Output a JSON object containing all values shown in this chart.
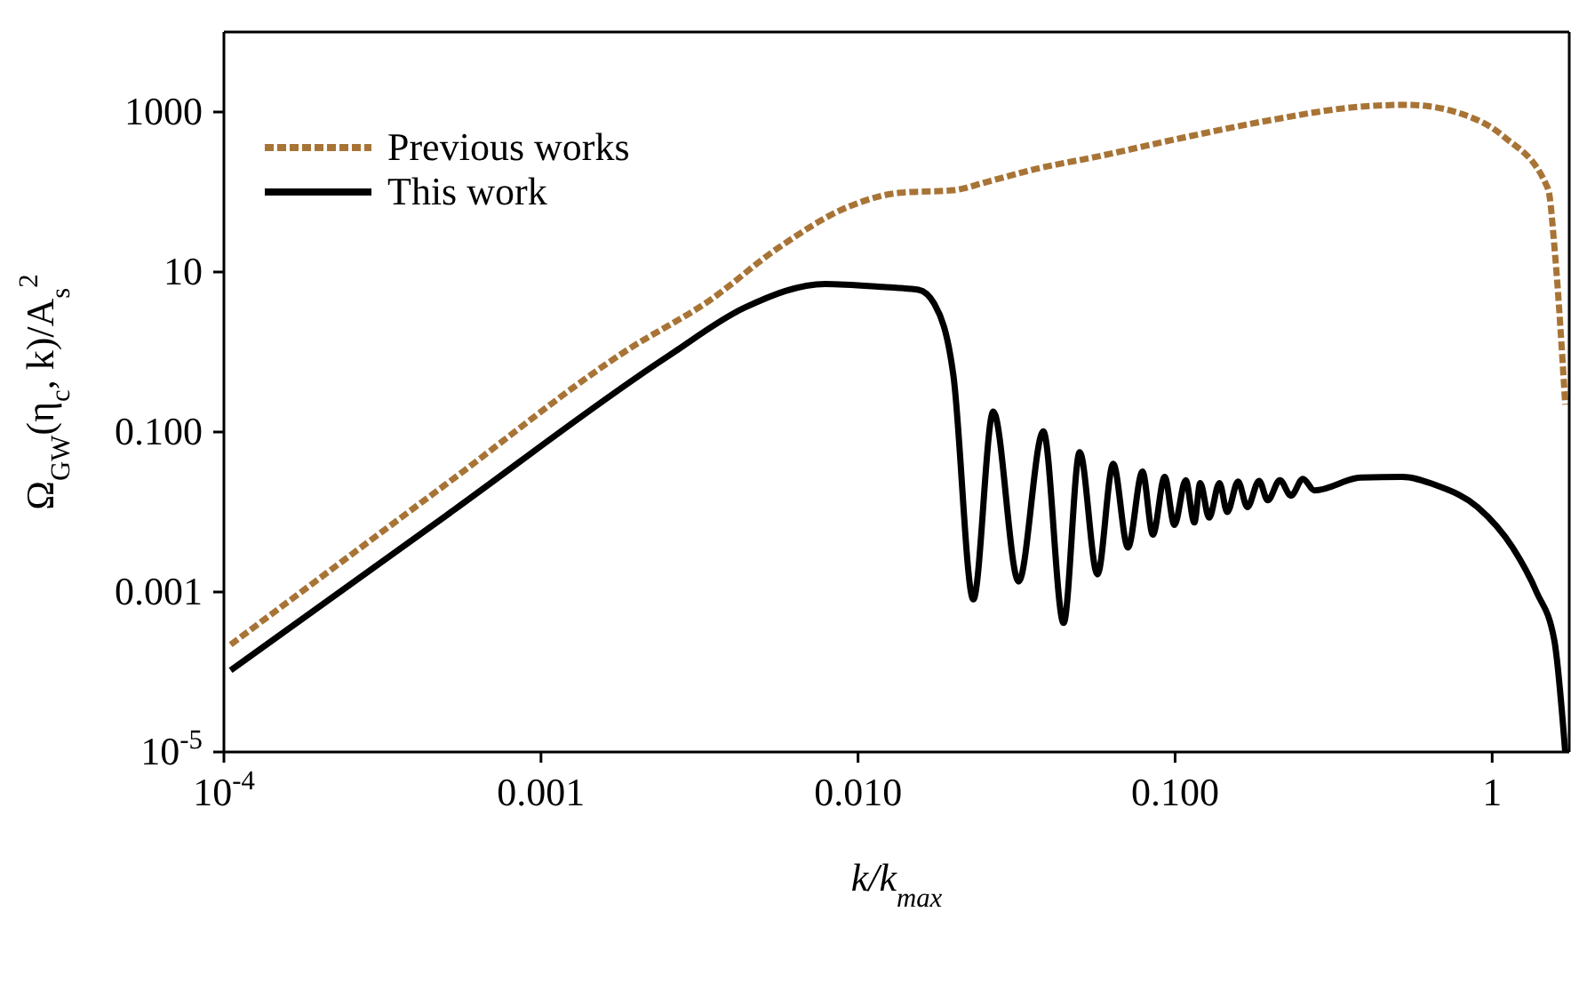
{
  "chart_data": {
    "type": "line",
    "xlabel": "k/k$_{max}$",
    "ylabel": "Ω$_{GW}$(η$_{c}$, k)/A$_{s}$$^{2}$",
    "log": "xy",
    "legend": "top left",
    "xlim": [
      0.0001,
      1.75
    ],
    "xticks": [
      {
        "value": 0.0001,
        "label": "10$^{-4}$"
      },
      {
        "value": 0.001,
        "label": "0.001"
      },
      {
        "value": 0.01,
        "label": "0.010"
      },
      {
        "value": 0.1,
        "label": "0.100"
      },
      1
    ],
    "ylim": [
      1e-05,
      10000
    ],
    "yticks": [
      {
        "value": 1e-05,
        "label": "10$^{-5}$"
      },
      0.001,
      {
        "value": 0.1,
        "label": "0.100"
      },
      10,
      1000
    ],
    "series": [
      {
        "name": "Previous works",
        "color": "#a87436",
        "line_style": "dashed",
        "x": [
          0.000105,
          0.0005,
          0.0019,
          0.0034,
          0.0056,
          0.0093,
          0.0136,
          0.0199,
          0.0257,
          0.0376,
          0.055,
          0.104,
          0.196,
          0.37,
          0.54,
          0.8,
          1.09,
          1.5,
          1.58,
          1.7
        ],
        "values": [
          0.00022,
          0.022,
          1.1,
          4.4,
          20,
          65,
          98,
          105,
          135,
          200,
          270,
          470,
          780,
          1150,
          1230,
          950,
          490,
          110,
          16,
          0.22
        ]
      },
      {
        "name": "This work",
        "color": "#000000",
        "line_style": "solid",
        "x": [
          0.000105,
          0.0005,
          0.0025,
          0.0044,
          0.0079,
          0.012,
          0.0155,
          0.0174,
          0.02,
          0.0231,
          0.0267,
          0.0321,
          0.0384,
          0.0445,
          0.05,
          0.0569,
          0.0638,
          0.071,
          0.0789,
          0.0851,
          0.0927,
          0.0995,
          0.108,
          0.115,
          0.12,
          0.128,
          0.138,
          0.146,
          0.158,
          0.169,
          0.184,
          0.196,
          0.214,
          0.232,
          0.253,
          0.275,
          0.386,
          0.52,
          0.67,
          0.9,
          1.16,
          1.38,
          1.57,
          1.7
        ],
        "values": [
          0.000105,
          0.0089,
          0.87,
          3.6,
          7.1,
          6.5,
          6,
          4,
          0.5,
          0.00081,
          0.18,
          0.00135,
          0.102,
          0.00041,
          0.056,
          0.00166,
          0.04,
          0.0036,
          0.032,
          0.0052,
          0.0275,
          0.0069,
          0.025,
          0.0074,
          0.023,
          0.0085,
          0.023,
          0.01,
          0.024,
          0.0115,
          0.0245,
          0.014,
          0.025,
          0.016,
          0.026,
          0.0186,
          0.027,
          0.0275,
          0.0214,
          0.0115,
          0.0036,
          0.001,
          0.00025,
          1e-05
        ]
      }
    ]
  }
}
